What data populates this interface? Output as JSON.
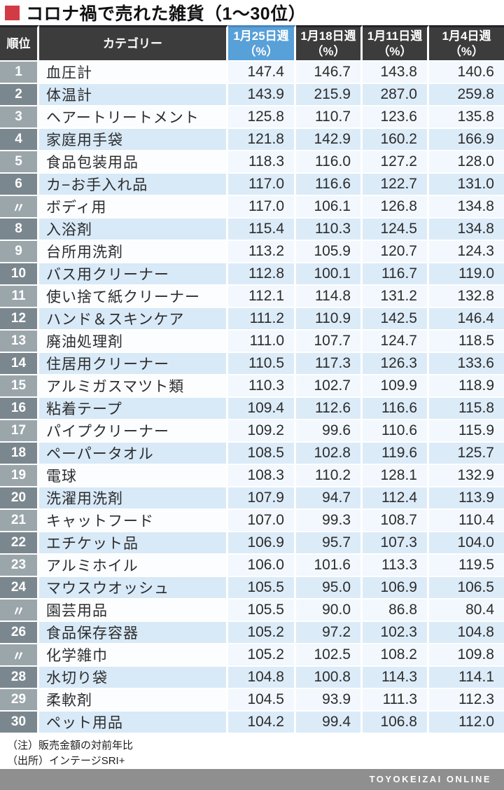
{
  "title": {
    "text": "コロナ禍で売れた雑貨（1〜30位）"
  },
  "table": {
    "headers": {
      "rank": "順位",
      "category": "カテゴリー"
    },
    "weeks": [
      {
        "label": "1月25日週",
        "unit": "（%）",
        "highlight": true
      },
      {
        "label": "1月18日週",
        "unit": "（%）",
        "highlight": false
      },
      {
        "label": "1月11日週",
        "unit": "（%）",
        "highlight": false
      },
      {
        "label": "1月4日週",
        "unit": "（%）",
        "highlight": false
      }
    ]
  },
  "notes": [
    "（注）販売金額の対前年比",
    "（出所）インテージSRI+"
  ],
  "footer": {
    "brand": "TOYOKEIZAI ONLINE"
  },
  "colors": {
    "title_square": "#d23a44",
    "header_dark": "#3c3c3c",
    "header_highlight_blue": "#58a0d8",
    "rank_odd": "#9ba6ab",
    "rank_even": "#7b878e",
    "category_even": "#d8e9f7",
    "highlight_col_odd": "#d5e7f6",
    "highlight_col_even": "#bedaf2",
    "value_col_even": "#dcebf8",
    "brand_bar": "#8f8f8f"
  },
  "chart_data": {
    "type": "table",
    "title": "コロナ禍で売れた雑貨（1〜30位）",
    "columns": [
      "順位",
      "カテゴリー",
      "1月25日週（%）",
      "1月18日週（%）",
      "1月11日週（%）",
      "1月4日週（%）"
    ],
    "rows": [
      [
        "1",
        "血圧計",
        147.4,
        146.7,
        143.8,
        140.6
      ],
      [
        "2",
        "体温計",
        143.9,
        215.9,
        287.0,
        259.8
      ],
      [
        "3",
        "ヘアートリートメント",
        125.8,
        110.7,
        123.6,
        135.8
      ],
      [
        "4",
        "家庭用手袋",
        121.8,
        142.9,
        160.2,
        166.9
      ],
      [
        "5",
        "食品包装用品",
        118.3,
        116.0,
        127.2,
        128.0
      ],
      [
        "6",
        "カ−お手入れ品",
        117.0,
        116.6,
        122.7,
        131.0
      ],
      [
        "〃",
        "ボディ用",
        117.0,
        106.1,
        126.8,
        134.8
      ],
      [
        "8",
        "入浴剤",
        115.4,
        110.3,
        124.5,
        134.8
      ],
      [
        "9",
        "台所用洗剤",
        113.2,
        105.9,
        120.7,
        124.3
      ],
      [
        "10",
        "バス用クリーナー",
        112.8,
        100.1,
        116.7,
        119.0
      ],
      [
        "11",
        "使い捨て紙クリーナー",
        112.1,
        114.8,
        131.2,
        132.8
      ],
      [
        "12",
        "ハンド＆スキンケア",
        111.2,
        110.9,
        142.5,
        146.4
      ],
      [
        "13",
        "廃油処理剤",
        111.0,
        107.7,
        124.7,
        118.5
      ],
      [
        "14",
        "住居用クリーナー",
        110.5,
        117.3,
        126.3,
        133.6
      ],
      [
        "15",
        "アルミガスマツト類",
        110.3,
        102.7,
        109.9,
        118.9
      ],
      [
        "16",
        "粘着テープ",
        109.4,
        112.6,
        116.6,
        115.8
      ],
      [
        "17",
        "パイプクリーナー",
        109.2,
        99.6,
        110.6,
        115.9
      ],
      [
        "18",
        "ペーパータオル",
        108.5,
        102.8,
        119.6,
        125.7
      ],
      [
        "19",
        "電球",
        108.3,
        110.2,
        128.1,
        132.9
      ],
      [
        "20",
        "洗濯用洗剤",
        107.9,
        94.7,
        112.4,
        113.9
      ],
      [
        "21",
        "キャットフード",
        107.0,
        99.3,
        108.7,
        110.4
      ],
      [
        "22",
        "エチケット品",
        106.9,
        95.7,
        107.3,
        104.0
      ],
      [
        "23",
        "アルミホイル",
        106.0,
        101.6,
        113.3,
        119.5
      ],
      [
        "24",
        "マウスウオッシュ",
        105.5,
        95.0,
        106.9,
        106.5
      ],
      [
        "〃",
        "園芸用品",
        105.5,
        90.0,
        86.8,
        80.4
      ],
      [
        "26",
        "食品保存容器",
        105.2,
        97.2,
        102.3,
        104.8
      ],
      [
        "〃",
        "化学雑巾",
        105.2,
        102.5,
        108.2,
        109.8
      ],
      [
        "28",
        "水切り袋",
        104.8,
        100.8,
        114.3,
        114.1
      ],
      [
        "29",
        "柔軟剤",
        104.5,
        93.9,
        111.3,
        112.3
      ],
      [
        "30",
        "ペット用品",
        104.2,
        99.4,
        106.8,
        112.0
      ]
    ],
    "note": "（注）販売金額の対前年比",
    "source": "（出所）インテージSRI+"
  }
}
